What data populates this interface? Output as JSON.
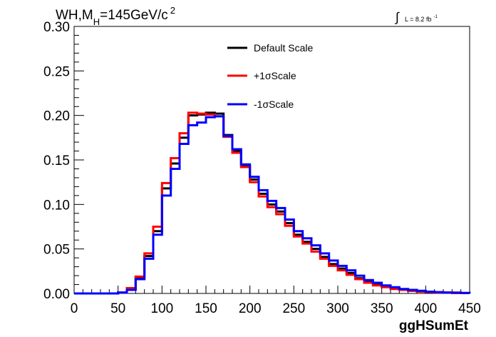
{
  "chart_data": {
    "type": "line",
    "title": "WH,M",
    "title_sub": "H",
    "title_rest": "=145GeV/c",
    "title_sup": "2",
    "lumi_label": "L = 8.2 fb",
    "lumi_sup": "-1",
    "xlabel": "ggHSumEt",
    "ylabel": "",
    "xlim": [
      0,
      450
    ],
    "ylim": [
      0,
      0.3
    ],
    "xticks": [
      "0",
      "50",
      "100",
      "150",
      "200",
      "250",
      "300",
      "350",
      "400",
      "450"
    ],
    "yticks": [
      "0.00",
      "0.05",
      "0.10",
      "0.15",
      "0.20",
      "0.25",
      "0.30"
    ],
    "bin_width": 10,
    "x_start": 0,
    "legend_position": "top-center",
    "grid": false,
    "series": [
      {
        "name": "Default Scale",
        "color": "#000000",
        "values": [
          0,
          0,
          0,
          0,
          0,
          0.001,
          0.005,
          0.018,
          0.042,
          0.07,
          0.118,
          0.146,
          0.175,
          0.2,
          0.201,
          0.203,
          0.202,
          0.178,
          0.16,
          0.143,
          0.128,
          0.112,
          0.1,
          0.092,
          0.079,
          0.066,
          0.058,
          0.05,
          0.041,
          0.033,
          0.028,
          0.023,
          0.017,
          0.013,
          0.01,
          0.008,
          0.006,
          0.004,
          0.003,
          0.002,
          0.0015,
          0.001,
          0.001,
          0.0005,
          0.0005
        ]
      },
      {
        "name": "+1σScale",
        "color": "#ff0000",
        "values": [
          0,
          0,
          0,
          0,
          0,
          0.001,
          0.006,
          0.019,
          0.045,
          0.075,
          0.124,
          0.152,
          0.18,
          0.203,
          0.202,
          0.201,
          0.199,
          0.176,
          0.158,
          0.142,
          0.125,
          0.109,
          0.097,
          0.089,
          0.076,
          0.064,
          0.056,
          0.047,
          0.039,
          0.031,
          0.026,
          0.021,
          0.016,
          0.012,
          0.009,
          0.007,
          0.005,
          0.004,
          0.003,
          0.002,
          0.0015,
          0.001,
          0.001,
          0.0005,
          0.0005
        ]
      },
      {
        "name": "-1σScale",
        "color": "#0000ff",
        "values": [
          0,
          0,
          0,
          0,
          0,
          0.001,
          0.004,
          0.016,
          0.039,
          0.066,
          0.11,
          0.14,
          0.168,
          0.189,
          0.192,
          0.198,
          0.199,
          0.177,
          0.162,
          0.145,
          0.131,
          0.116,
          0.104,
          0.096,
          0.083,
          0.07,
          0.062,
          0.054,
          0.045,
          0.037,
          0.031,
          0.026,
          0.02,
          0.015,
          0.012,
          0.009,
          0.007,
          0.005,
          0.004,
          0.003,
          0.002,
          0.0015,
          0.001,
          0.001,
          0.0005
        ]
      }
    ]
  }
}
